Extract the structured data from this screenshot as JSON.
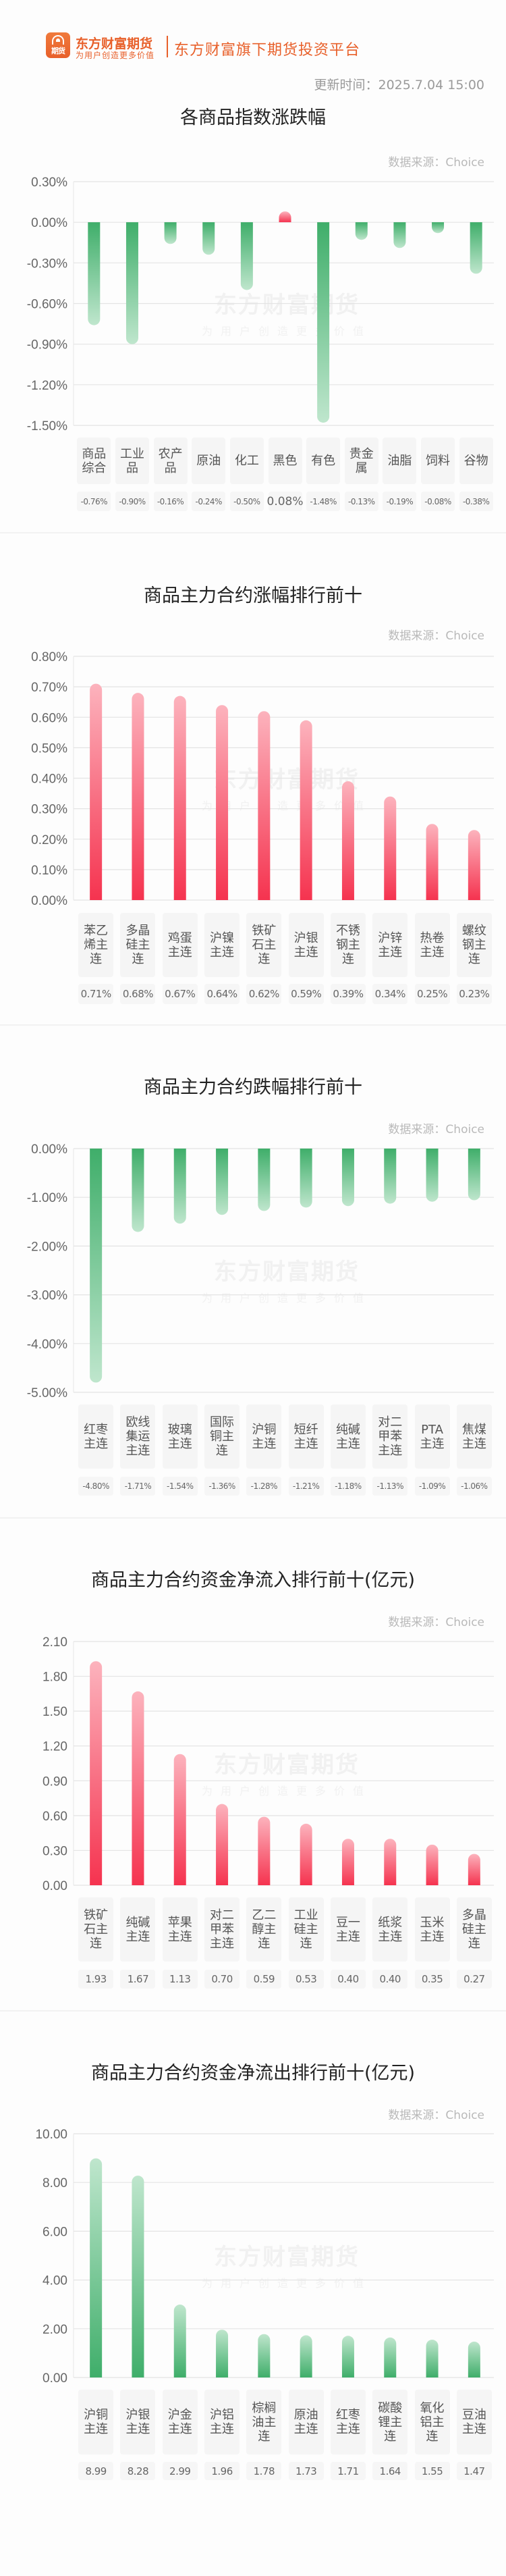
{
  "header": {
    "logo_caption": "期货",
    "brand_name": "东方财富期货",
    "brand_slogan": "为用户创造更多价值",
    "platform_text": "东方财富旗下期货投资平台",
    "update_time": "更新时间：2025.7.04 15:00"
  },
  "watermark": {
    "line1": "东方财富期货",
    "line2": "为用户创造更多价值"
  },
  "colors": {
    "brand": "#e8602a",
    "up_red": "#f5334f",
    "up_red_light": "#fcb3bd",
    "down_green": "#3fae6a",
    "down_green_light": "#bfe6cd"
  },
  "chart_data": [
    {
      "id": "index_change",
      "type": "bar",
      "title": "各商品指数涨跌幅",
      "source": "数据来源：Choice",
      "categories": [
        "商品综合",
        "工业品",
        "农产品",
        "原油",
        "化工",
        "黑色",
        "有色",
        "贵金属",
        "油脂",
        "饲料",
        "谷物"
      ],
      "values": [
        -0.76,
        -0.9,
        -0.16,
        -0.24,
        -0.5,
        0.08,
        -1.48,
        -0.13,
        -0.19,
        -0.08,
        -0.38
      ],
      "value_labels": [
        "-0.76%",
        "-0.90%",
        "-0.16%",
        "-0.24%",
        "-0.50%",
        "0.08%",
        "-1.48%",
        "-0.13%",
        "-0.19%",
        "-0.08%",
        "-0.38%"
      ],
      "yticks": [
        "0.30%",
        "0.00%",
        "-0.30%",
        "-0.60%",
        "-0.90%",
        "-1.20%",
        "-1.50%"
      ],
      "ylim": [
        -1.5,
        0.3
      ],
      "unit": "%",
      "grid": true,
      "xlabel": "",
      "ylabel": ""
    },
    {
      "id": "top_gainers",
      "type": "bar",
      "title": "商品主力合约涨幅排行前十",
      "source": "数据来源：Choice",
      "categories": [
        "苯乙烯主连",
        "多晶硅主连",
        "鸡蛋主连",
        "沪镍主连",
        "铁矿石主连",
        "沪银主连",
        "不锈钢主连",
        "沪锌主连",
        "热卷主连",
        "螺纹钢主连"
      ],
      "values": [
        0.71,
        0.68,
        0.67,
        0.64,
        0.62,
        0.59,
        0.39,
        0.34,
        0.25,
        0.23
      ],
      "value_labels": [
        "0.71%",
        "0.68%",
        "0.67%",
        "0.64%",
        "0.62%",
        "0.59%",
        "0.39%",
        "0.34%",
        "0.25%",
        "0.23%"
      ],
      "yticks": [
        "0.80%",
        "0.70%",
        "0.60%",
        "0.50%",
        "0.40%",
        "0.30%",
        "0.20%",
        "0.10%",
        "0.00%"
      ],
      "ylim": [
        0,
        0.8
      ],
      "unit": "%",
      "grid": true,
      "xlabel": "",
      "ylabel": ""
    },
    {
      "id": "top_losers",
      "type": "bar",
      "title": "商品主力合约跌幅排行前十",
      "source": "数据来源：Choice",
      "categories": [
        "红枣主连",
        "欧线集运主连",
        "玻璃主连",
        "国际铜主连",
        "沪铜主连",
        "短纤主连",
        "纯碱主连",
        "对二甲苯主连",
        "PTA主连",
        "焦煤主连"
      ],
      "values": [
        -4.8,
        -1.71,
        -1.54,
        -1.36,
        -1.28,
        -1.21,
        -1.18,
        -1.13,
        -1.09,
        -1.06
      ],
      "value_labels": [
        "-4.80%",
        "-1.71%",
        "-1.54%",
        "-1.36%",
        "-1.28%",
        "-1.21%",
        "-1.18%",
        "-1.13%",
        "-1.09%",
        "-1.06%"
      ],
      "yticks": [
        "0.00%",
        "-1.00%",
        "-2.00%",
        "-3.00%",
        "-4.00%",
        "-5.00%"
      ],
      "ylim": [
        -5,
        0
      ],
      "unit": "%",
      "grid": true,
      "xlabel": "",
      "ylabel": ""
    },
    {
      "id": "net_inflow",
      "type": "bar",
      "title": "商品主力合约资金净流入排行前十(亿元)",
      "source": "数据来源：Choice",
      "categories": [
        "铁矿石主连",
        "纯碱主连",
        "苹果主连",
        "对二甲苯主连",
        "乙二醇主连",
        "工业硅主连",
        "豆一主连",
        "纸浆主连",
        "玉米主连",
        "多晶硅主连"
      ],
      "values": [
        1.93,
        1.67,
        1.13,
        0.7,
        0.59,
        0.53,
        0.4,
        0.4,
        0.35,
        0.27
      ],
      "value_labels": [
        "1.93",
        "1.67",
        "1.13",
        "0.70",
        "0.59",
        "0.53",
        "0.40",
        "0.40",
        "0.35",
        "0.27"
      ],
      "yticks": [
        "2.10",
        "1.80",
        "1.50",
        "1.20",
        "0.90",
        "0.60",
        "0.30",
        "0.00"
      ],
      "ylim": [
        0,
        2.1
      ],
      "unit": "亿元",
      "grid": true,
      "xlabel": "",
      "ylabel": ""
    },
    {
      "id": "net_outflow",
      "type": "bar",
      "title": "商品主力合约资金净流出排行前十(亿元)",
      "source": "数据来源：Choice",
      "categories": [
        "沪铜主连",
        "沪银主连",
        "沪金主连",
        "沪铝主连",
        "棕榈油主连",
        "原油主连",
        "红枣主连",
        "碳酸锂主连",
        "氧化铝主连",
        "豆油主连"
      ],
      "values": [
        8.99,
        8.28,
        2.99,
        1.96,
        1.78,
        1.73,
        1.71,
        1.64,
        1.55,
        1.47
      ],
      "value_labels": [
        "8.99",
        "8.28",
        "2.99",
        "1.96",
        "1.78",
        "1.73",
        "1.71",
        "1.64",
        "1.55",
        "1.47"
      ],
      "yticks": [
        "10.00",
        "8.00",
        "6.00",
        "4.00",
        "2.00",
        "0.00"
      ],
      "ylim": [
        0,
        10
      ],
      "unit": "亿元",
      "grid": true,
      "xlabel": "",
      "ylabel": ""
    }
  ]
}
